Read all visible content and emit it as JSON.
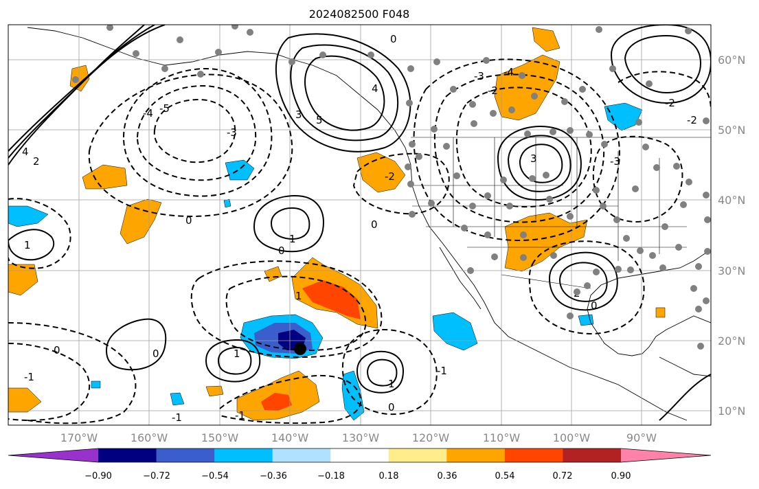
{
  "title": "2024082500 F048",
  "lat_labels": [
    "60°N",
    "50°N",
    "40°N",
    "30°N",
    "20°N",
    "10°N"
  ],
  "lon_labels": [
    "170°W",
    "160°W",
    "150°W",
    "140°W",
    "130°W",
    "120°W",
    "110°W",
    "100°W",
    "90°W"
  ],
  "colorbar": {
    "labels": [
      "−0.90",
      "−0.72",
      "−0.54",
      "−0.36",
      "−0.18",
      "0.18",
      "0.36",
      "0.54",
      "0.72",
      "0.90"
    ],
    "colors": [
      "#9932cc",
      "#000080",
      "#3a5fcd",
      "#00bfff",
      "#b0e2ff",
      "#ffffff",
      "#ffec8b",
      "#ffa500",
      "#ff4500",
      "#b22222",
      "#ff82ab"
    ]
  },
  "contour_labels": [
    "0",
    "1",
    "2",
    "3",
    "4",
    "5",
    "0",
    "-1",
    "-2",
    "-3",
    "-4",
    "-5"
  ]
}
